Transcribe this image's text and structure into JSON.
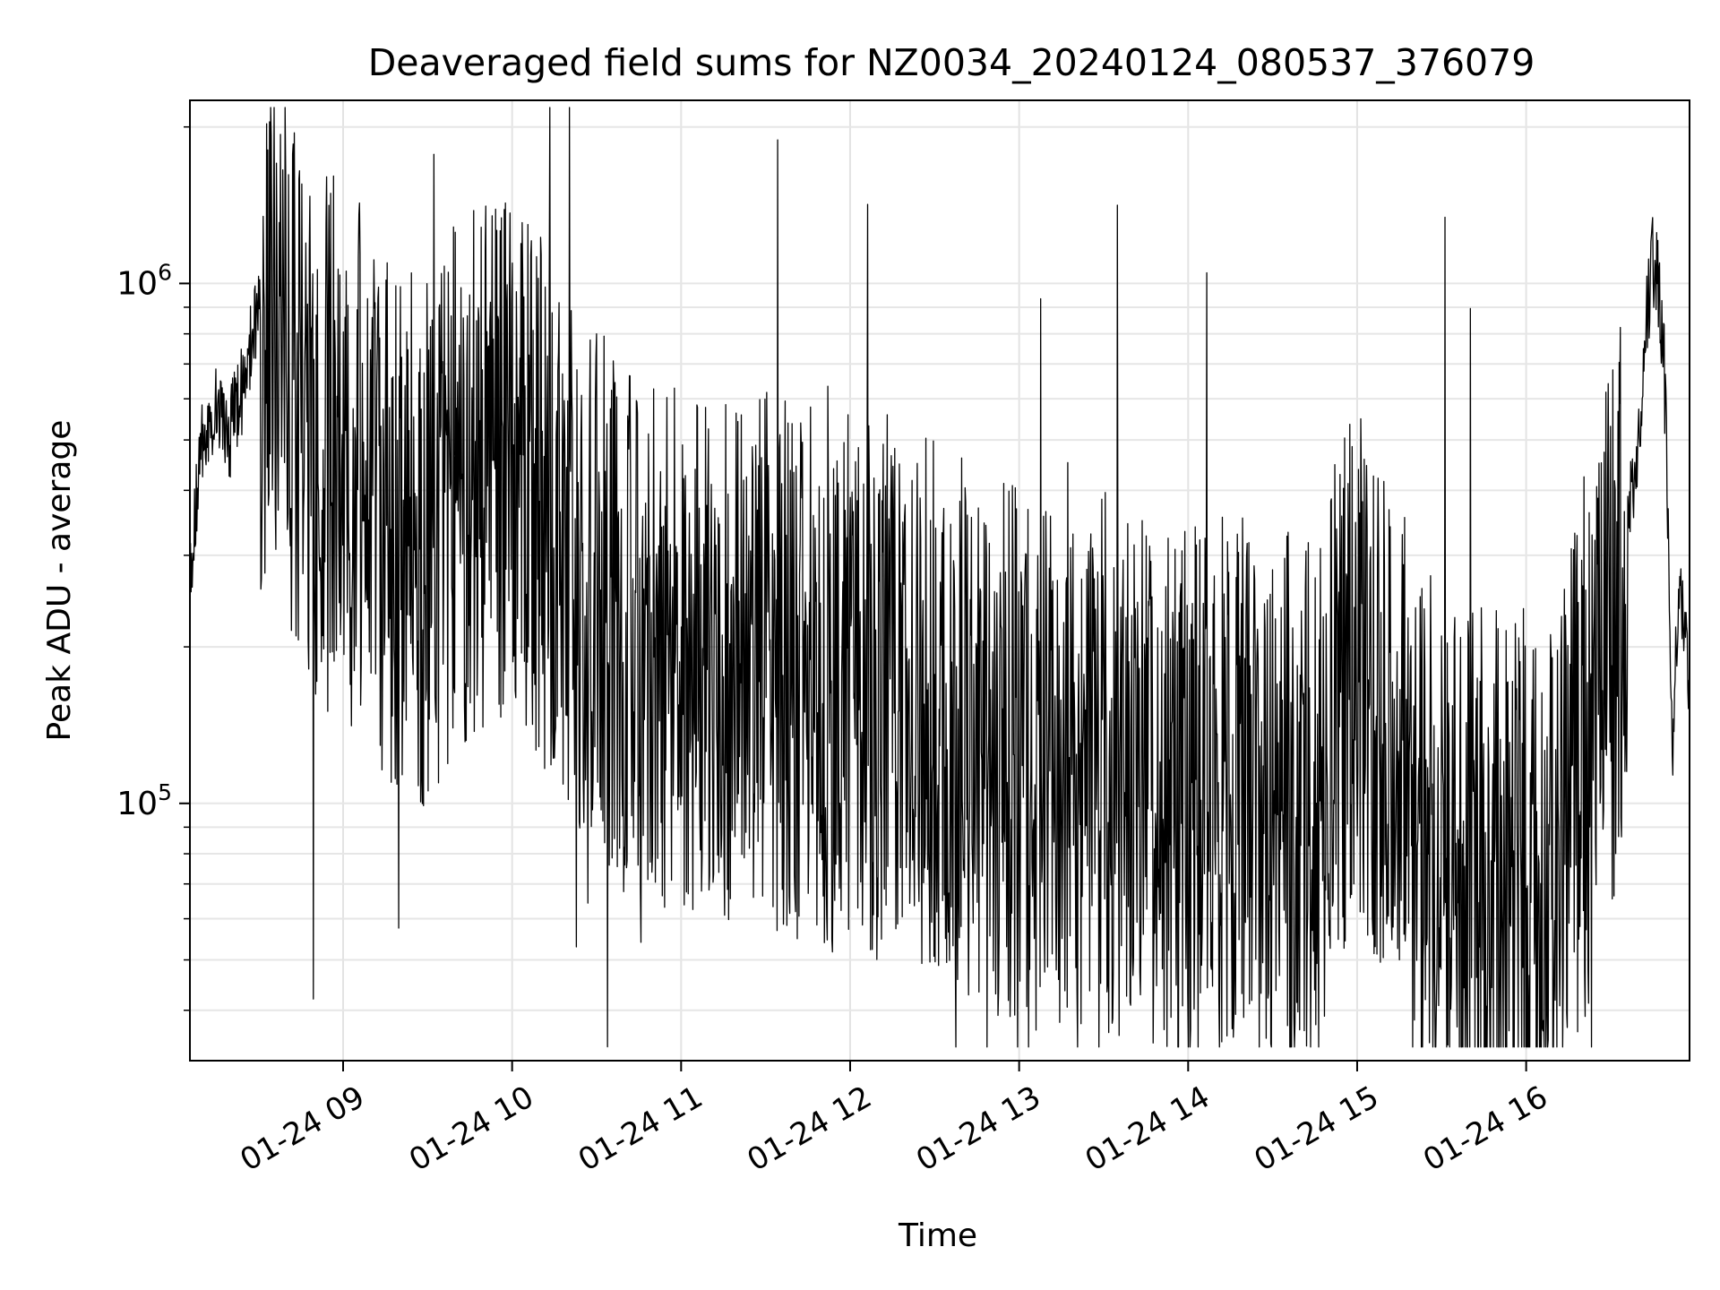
{
  "chart_data": {
    "type": "line",
    "title": "Deaveraged field sums for NZ0034_20240124_080537_376079",
    "xlabel": "Time",
    "ylabel": "Peak ADU - average",
    "x_axis": {
      "kind": "datetime",
      "range": [
        "2024-01-24T08:05:37",
        "2024-01-24T16:58:00"
      ],
      "tick_labels": [
        "01-24 09",
        "01-24 10",
        "01-24 11",
        "01-24 12",
        "01-24 13",
        "01-24 14",
        "01-24 15",
        "01-24 16"
      ]
    },
    "y_axis": {
      "scale": "log",
      "range": [
        32000,
        2250000
      ],
      "major_ticks": [
        100000,
        1000000
      ],
      "tick_labels": [
        {
          "base": "10",
          "exp": "5"
        },
        {
          "base": "10",
          "exp": "6"
        }
      ]
    },
    "grid": true,
    "line_color": "#000000",
    "series": [
      {
        "points": [
          [
            "2024-01-24T08:05:37",
            280000
          ],
          [
            "2024-01-24T08:10",
            480000
          ],
          [
            "2024-01-24T08:15",
            560000
          ],
          [
            "2024-01-24T08:20",
            520000
          ],
          [
            "2024-01-24T08:25",
            650000
          ],
          [
            "2024-01-24T08:30",
            900000
          ],
          [
            "2024-01-24T08:35",
            1150000
          ],
          [
            "2024-01-24T08:40",
            800000
          ],
          [
            "2024-01-24T08:45",
            750000
          ],
          [
            "2024-01-24T08:50",
            600000
          ],
          [
            "2024-01-24T08:55",
            560000
          ],
          [
            "2024-01-24T09:00",
            520000
          ],
          [
            "2024-01-24T09:10",
            460000
          ],
          [
            "2024-01-24T09:20",
            380000
          ],
          [
            "2024-01-24T09:30",
            360000
          ],
          [
            "2024-01-24T09:40",
            450000
          ],
          [
            "2024-01-24T09:50",
            520000
          ],
          [
            "2024-01-24T10:00",
            480000
          ],
          [
            "2024-01-24T10:10",
            420000
          ],
          [
            "2024-01-24T10:20",
            340000
          ],
          [
            "2024-01-24T10:30",
            280000
          ],
          [
            "2024-01-24T10:45",
            240000
          ],
          [
            "2024-01-24T11:00",
            230000
          ],
          [
            "2024-01-24T11:15",
            220000
          ],
          [
            "2024-01-24T11:30",
            210000
          ],
          [
            "2024-01-24T11:45",
            200000
          ],
          [
            "2024-01-24T12:00",
            190000
          ],
          [
            "2024-01-24T12:15",
            200000
          ],
          [
            "2024-01-24T12:30",
            180000
          ],
          [
            "2024-01-24T12:45",
            150000
          ],
          [
            "2024-01-24T13:00",
            140000
          ],
          [
            "2024-01-24T13:15",
            130000
          ],
          [
            "2024-01-24T13:30",
            135000
          ],
          [
            "2024-01-24T13:45",
            125000
          ],
          [
            "2024-01-24T14:00",
            120000
          ],
          [
            "2024-01-24T14:15",
            125000
          ],
          [
            "2024-01-24T14:30",
            110000
          ],
          [
            "2024-01-24T14:45",
            120000
          ],
          [
            "2024-01-24T15:00",
            200000
          ],
          [
            "2024-01-24T15:15",
            130000
          ],
          [
            "2024-01-24T15:30",
            85000
          ],
          [
            "2024-01-24T15:45",
            80000
          ],
          [
            "2024-01-24T16:00",
            80000
          ],
          [
            "2024-01-24T16:10",
            75000
          ],
          [
            "2024-01-24T16:20",
            140000
          ],
          [
            "2024-01-24T16:30",
            230000
          ],
          [
            "2024-01-24T16:36",
            350000
          ],
          [
            "2024-01-24T16:40",
            480000
          ],
          [
            "2024-01-24T16:43",
            900000
          ],
          [
            "2024-01-24T16:45",
            1100000
          ],
          [
            "2024-01-24T16:47",
            1000000
          ],
          [
            "2024-01-24T16:49",
            700000
          ],
          [
            "2024-01-24T16:51",
            250000
          ],
          [
            "2024-01-24T16:52",
            115000
          ],
          [
            "2024-01-24T16:53",
            180000
          ],
          [
            "2024-01-24T16:55",
            240000
          ],
          [
            "2024-01-24T16:57",
            230000
          ],
          [
            "2024-01-24T16:58",
            140000
          ]
        ]
      }
    ]
  }
}
